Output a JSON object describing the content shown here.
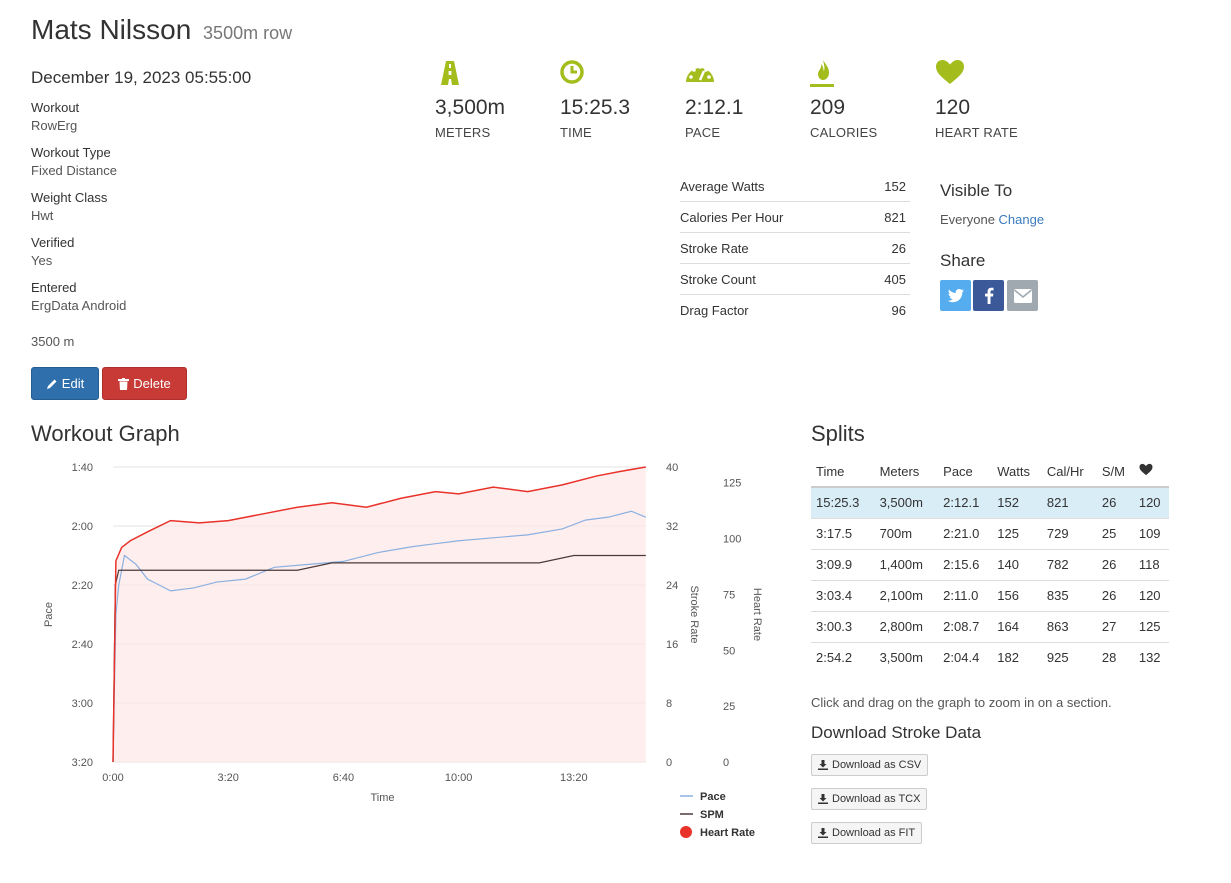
{
  "header": {
    "name": "Mats Nilsson",
    "subtitle": "3500m row",
    "date": "December 19, 2023 05:55:00"
  },
  "details": [
    {
      "label": "Workout",
      "value": "RowErg"
    },
    {
      "label": "Workout Type",
      "value": "Fixed Distance"
    },
    {
      "label": "Weight Class",
      "value": "Hwt"
    },
    {
      "label": "Verified",
      "value": "Yes"
    },
    {
      "label": "Entered",
      "value": "ErgData Android"
    }
  ],
  "distance_text": "3500 m",
  "buttons": {
    "edit": "Edit",
    "delete": "Delete"
  },
  "stats": [
    {
      "icon": "road-icon",
      "value": "3,500m",
      "label": "METERS"
    },
    {
      "icon": "clock-icon",
      "value": "15:25.3",
      "label": "TIME"
    },
    {
      "icon": "speedometer-icon",
      "value": "2:12.1",
      "label": "PACE"
    },
    {
      "icon": "flame-icon",
      "value": "209",
      "label": "CALORIES"
    },
    {
      "icon": "heart-icon",
      "value": "120",
      "label": "HEART RATE"
    }
  ],
  "accent_color": "#a4bd1d",
  "metrics": [
    {
      "label": "Average Watts",
      "value": "152"
    },
    {
      "label": "Calories Per Hour",
      "value": "821"
    },
    {
      "label": "Stroke Rate",
      "value": "26"
    },
    {
      "label": "Stroke Count",
      "value": "405"
    },
    {
      "label": "Drag Factor",
      "value": "96"
    }
  ],
  "visibility": {
    "heading": "Visible To",
    "value": "Everyone",
    "change_label": "Change"
  },
  "share": {
    "heading": "Share",
    "buttons": [
      "twitter-icon",
      "facebook-icon",
      "envelope-icon"
    ]
  },
  "graph": {
    "heading": "Workout Graph"
  },
  "chart_data": {
    "type": "line",
    "xlabel": "Time",
    "x_ticks": [
      "0:00",
      "3:20",
      "6:40",
      "10:00",
      "13:20"
    ],
    "x_range_seconds": [
      0,
      925.3
    ],
    "pace_axis": {
      "label": "Pace",
      "ticks": [
        "1:40",
        "2:00",
        "2:20",
        "2:40",
        "3:00",
        "3:20"
      ],
      "range_seconds": [
        100,
        200
      ],
      "inverted": true
    },
    "stroke_axis": {
      "label": "Stroke Rate",
      "ticks": [
        0,
        8,
        16,
        24,
        32,
        40
      ],
      "range": [
        0,
        40
      ]
    },
    "heart_axis": {
      "label": "Heart Rate",
      "ticks": [
        0,
        25,
        50,
        75,
        100,
        125
      ],
      "range": [
        0,
        132
      ]
    },
    "series": [
      {
        "name": "Pace",
        "color": "#8ab0e0",
        "x": [
          0,
          5,
          10,
          20,
          40,
          60,
          80,
          100,
          140,
          180,
          230,
          280,
          340,
          400,
          460,
          520,
          560,
          600,
          660,
          720,
          780,
          820,
          860,
          900,
          925
        ],
        "y": [
          200,
          150,
          140,
          130,
          133,
          138,
          140,
          142,
          141,
          139,
          138,
          134,
          133,
          132,
          129,
          127,
          126,
          125,
          124,
          123,
          121,
          118,
          117,
          115,
          117
        ]
      },
      {
        "name": "SPM",
        "color": "#4a3a3a",
        "x": [
          0,
          4,
          10,
          30,
          60,
          100,
          150,
          200,
          260,
          320,
          380,
          440,
          500,
          560,
          620,
          680,
          740,
          800,
          860,
          900,
          925
        ],
        "y": [
          0,
          24,
          26,
          26,
          26,
          26,
          26,
          26,
          26,
          26,
          27,
          27,
          27,
          27,
          27,
          27,
          27,
          28,
          28,
          28,
          28
        ]
      },
      {
        "name": "Heart Rate",
        "color": "#e8322a",
        "x": [
          0,
          5,
          15,
          30,
          60,
          100,
          150,
          200,
          260,
          320,
          380,
          440,
          500,
          560,
          600,
          660,
          720,
          780,
          840,
          880,
          925
        ],
        "y": [
          0,
          90,
          96,
          99,
          103,
          108,
          107,
          108,
          111,
          114,
          116,
          114,
          118,
          121,
          120,
          123,
          121,
          124,
          128,
          130,
          132
        ]
      }
    ]
  },
  "splits": {
    "heading": "Splits",
    "columns": [
      "Time",
      "Meters",
      "Pace",
      "Watts",
      "Cal/Hr",
      "S/M"
    ],
    "heart_column_icon": "heart-icon",
    "rows": [
      [
        "15:25.3",
        "3,500m",
        "2:12.1",
        "152",
        "821",
        "26",
        "120"
      ],
      [
        "3:17.5",
        "700m",
        "2:21.0",
        "125",
        "729",
        "25",
        "109"
      ],
      [
        "3:09.9",
        "1,400m",
        "2:15.6",
        "140",
        "782",
        "26",
        "118"
      ],
      [
        "3:03.4",
        "2,100m",
        "2:11.0",
        "156",
        "835",
        "26",
        "120"
      ],
      [
        "3:00.3",
        "2,800m",
        "2:08.7",
        "164",
        "863",
        "27",
        "125"
      ],
      [
        "2:54.2",
        "3,500m",
        "2:04.4",
        "182",
        "925",
        "28",
        "132"
      ]
    ]
  },
  "hint": "Click and drag on the graph to zoom in on a section.",
  "download": {
    "heading": "Download Stroke Data",
    "buttons": [
      "Download as CSV",
      "Download as TCX",
      "Download as FIT"
    ]
  }
}
